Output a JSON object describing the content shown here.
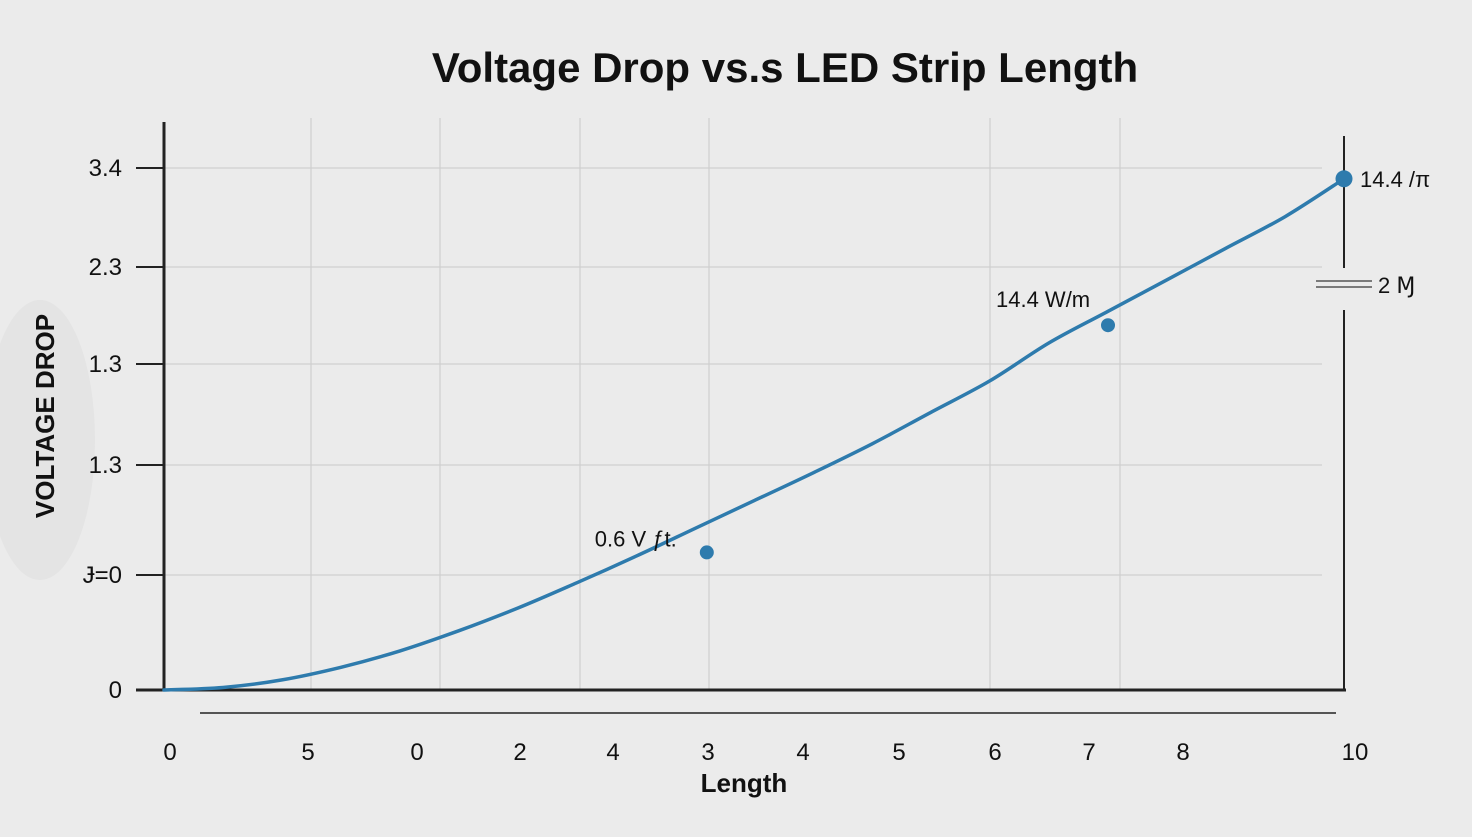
{
  "chart_data": {
    "type": "line",
    "title": "Voltage Drop vs.s LED Strip Length",
    "xlabel": "Length",
    "ylabel": "VOLTAGE DROP",
    "x_tick_labels": [
      "0",
      "5",
      "0",
      "2",
      "4",
      "3",
      "4",
      "5",
      "6",
      "7",
      "8",
      "10"
    ],
    "y_tick_labels": [
      "0",
      "Ɉ=0",
      "1.3",
      "1.3",
      "2.3",
      "3.4"
    ],
    "xlim": [
      0,
      10
    ],
    "ylim": [
      0,
      4.5
    ],
    "grid": true,
    "legend": "none",
    "series": [
      {
        "color": "#2e7bad",
        "x": [
          0,
          0.5,
          1.0,
          1.5,
          2.0,
          2.5,
          3.0,
          3.5,
          4.0,
          4.5,
          5.0,
          5.5,
          6.0,
          6.5,
          7.0,
          7.5,
          8.0,
          8.5,
          9.0,
          9.5,
          10.0
        ],
        "y": [
          0,
          0.02,
          0.08,
          0.18,
          0.31,
          0.47,
          0.65,
          0.85,
          1.06,
          1.28,
          1.5,
          1.72,
          1.95,
          2.2,
          2.45,
          2.75,
          3.0,
          3.25,
          3.5,
          3.75,
          4.05
        ]
      }
    ],
    "markers": [
      {
        "x": 4.6,
        "y": 1.09,
        "label": "0.6 V  ƒt."
      },
      {
        "x": 8.0,
        "y": 2.89,
        "label": "14.4 W/m"
      },
      {
        "x": 10.0,
        "y": 4.05,
        "label": "14.4 /π"
      }
    ],
    "side_annotation": "2 Ɱ"
  }
}
